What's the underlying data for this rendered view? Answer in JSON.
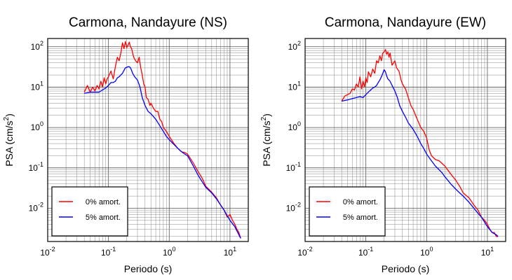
{
  "chart_data": [
    {
      "type": "line",
      "title": "Carmona, Nandayure (NS)",
      "xlabel": "Periodo (s)",
      "ylabel": "PSA (cm/s",
      "ylabel_sup": "2",
      "ylabel_close": ")",
      "xscale": "log",
      "yscale": "log",
      "xlim": [
        0.01,
        20
      ],
      "ylim": [
        0.0015,
        160
      ],
      "grid": true,
      "legend_position": "bottom-left",
      "x_ticks": [
        {
          "base": "10",
          "exp": "-2"
        },
        {
          "base": "10",
          "exp": "-1"
        },
        {
          "base": "10",
          "exp": "0"
        },
        {
          "base": "10",
          "exp": "1"
        }
      ],
      "y_ticks": [
        {
          "base": "10",
          "exp": "-2"
        },
        {
          "base": "10",
          "exp": "-1"
        },
        {
          "base": "10",
          "exp": "0"
        },
        {
          "base": "10",
          "exp": "1"
        },
        {
          "base": "10",
          "exp": "2"
        }
      ],
      "series": [
        {
          "name": "0% amort.",
          "color": "#ff0000",
          "x": [
            0.04,
            0.045,
            0.05,
            0.055,
            0.06,
            0.065,
            0.07,
            0.075,
            0.08,
            0.085,
            0.09,
            0.095,
            0.1,
            0.11,
            0.12,
            0.13,
            0.14,
            0.15,
            0.16,
            0.17,
            0.18,
            0.19,
            0.2,
            0.21,
            0.22,
            0.23,
            0.24,
            0.25,
            0.26,
            0.28,
            0.3,
            0.32,
            0.34,
            0.36,
            0.38,
            0.4,
            0.42,
            0.45,
            0.48,
            0.5,
            0.55,
            0.6,
            0.65,
            0.7,
            0.75,
            0.8,
            0.9,
            1.0,
            1.2,
            1.4,
            1.6,
            1.8,
            2.0,
            2.5,
            3.0,
            3.5,
            4.0,
            5.0,
            6.0,
            7.0,
            8.0,
            9.0,
            10.0,
            11.0,
            12.0,
            13.0,
            14.0,
            15.0
          ],
          "y": [
            7.5,
            11,
            7.5,
            10,
            8,
            11,
            9,
            14,
            10,
            17,
            12,
            16,
            18,
            25,
            16,
            32,
            55,
            45,
            70,
            125,
            90,
            135,
            95,
            110,
            130,
            100,
            90,
            70,
            55,
            45,
            40,
            55,
            30,
            20,
            12,
            10,
            5.5,
            5.0,
            3.5,
            4.0,
            3.0,
            2.5,
            2.5,
            1.6,
            1.4,
            1.0,
            0.8,
            0.6,
            0.4,
            0.3,
            0.25,
            0.24,
            0.22,
            0.13,
            0.08,
            0.055,
            0.035,
            0.025,
            0.018,
            0.012,
            0.009,
            0.006,
            0.007,
            0.005,
            0.004,
            0.003,
            0.0025,
            0.0018
          ]
        },
        {
          "name": "5% amort.",
          "color": "#0000ff",
          "x": [
            0.04,
            0.05,
            0.06,
            0.07,
            0.08,
            0.09,
            0.1,
            0.11,
            0.12,
            0.13,
            0.14,
            0.15,
            0.16,
            0.17,
            0.18,
            0.19,
            0.2,
            0.21,
            0.22,
            0.23,
            0.24,
            0.25,
            0.27,
            0.3,
            0.33,
            0.36,
            0.4,
            0.45,
            0.5,
            0.6,
            0.7,
            0.8,
            0.9,
            1.0,
            1.2,
            1.4,
            1.6,
            1.8,
            2.0,
            2.5,
            3.0,
            3.5,
            4.0,
            5.0,
            6.0,
            7.0,
            8.0,
            9.0,
            10.0,
            12.0,
            14.0,
            15.0
          ],
          "y": [
            7.0,
            7.5,
            7.5,
            7.5,
            8.5,
            9.5,
            11,
            13,
            13,
            14,
            17,
            18,
            20,
            22,
            26,
            30,
            31,
            32,
            32,
            30,
            26,
            22,
            18,
            15,
            10,
            5.5,
            3.5,
            2.5,
            2.2,
            1.6,
            1.1,
            0.8,
            0.6,
            0.5,
            0.38,
            0.3,
            0.25,
            0.22,
            0.2,
            0.11,
            0.065,
            0.045,
            0.033,
            0.024,
            0.017,
            0.012,
            0.009,
            0.0065,
            0.005,
            0.0035,
            0.0022,
            0.0018
          ]
        }
      ]
    },
    {
      "type": "line",
      "title": "Carmona, Nandayure (EW)",
      "xlabel": "Periodo (s)",
      "ylabel": "PSA (cm/s",
      "ylabel_sup": "2",
      "ylabel_close": ")",
      "xscale": "log",
      "yscale": "log",
      "xlim": [
        0.01,
        20
      ],
      "ylim": [
        0.0015,
        160
      ],
      "grid": true,
      "legend_position": "bottom-left",
      "x_ticks": [
        {
          "base": "10",
          "exp": "-2"
        },
        {
          "base": "10",
          "exp": "-1"
        },
        {
          "base": "10",
          "exp": "0"
        },
        {
          "base": "10",
          "exp": "1"
        }
      ],
      "y_ticks": [
        {
          "base": "10",
          "exp": "-2"
        },
        {
          "base": "10",
          "exp": "-1"
        },
        {
          "base": "10",
          "exp": "0"
        },
        {
          "base": "10",
          "exp": "1"
        },
        {
          "base": "10",
          "exp": "2"
        }
      ],
      "series": [
        {
          "name": "0% amort.",
          "color": "#ff0000",
          "x": [
            0.04,
            0.045,
            0.05,
            0.055,
            0.06,
            0.065,
            0.07,
            0.075,
            0.08,
            0.085,
            0.09,
            0.095,
            0.1,
            0.105,
            0.11,
            0.12,
            0.13,
            0.14,
            0.15,
            0.16,
            0.17,
            0.18,
            0.19,
            0.2,
            0.21,
            0.22,
            0.23,
            0.24,
            0.25,
            0.27,
            0.3,
            0.32,
            0.35,
            0.38,
            0.4,
            0.45,
            0.5,
            0.55,
            0.6,
            0.7,
            0.8,
            0.9,
            1.0,
            1.1,
            1.2,
            1.4,
            1.6,
            2.0,
            2.5,
            3.0,
            3.5,
            4.0,
            5.0,
            6.0,
            7.0,
            8.0,
            9.0,
            10.0,
            11.0,
            12.0,
            13.0,
            14.0,
            15.0
          ],
          "y": [
            4.5,
            6,
            6.5,
            7,
            9,
            8.5,
            12,
            10,
            18,
            9,
            14,
            10,
            17,
            13,
            24,
            18,
            28,
            22,
            45,
            40,
            60,
            45,
            70,
            75,
            85,
            65,
            75,
            55,
            70,
            35,
            45,
            30,
            25,
            15,
            12,
            9,
            5.5,
            3.5,
            2.8,
            1.6,
            1.0,
            0.8,
            0.55,
            0.28,
            0.2,
            0.16,
            0.15,
            0.11,
            0.07,
            0.05,
            0.035,
            0.024,
            0.018,
            0.012,
            0.009,
            0.006,
            0.005,
            0.004,
            0.003,
            0.0025,
            0.0025,
            0.002,
            0.002
          ]
        },
        {
          "name": "5% amort.",
          "color": "#0000ff",
          "x": [
            0.04,
            0.05,
            0.06,
            0.07,
            0.08,
            0.09,
            0.1,
            0.11,
            0.12,
            0.13,
            0.14,
            0.15,
            0.16,
            0.17,
            0.18,
            0.19,
            0.2,
            0.21,
            0.22,
            0.23,
            0.24,
            0.25,
            0.27,
            0.3,
            0.33,
            0.36,
            0.4,
            0.45,
            0.5,
            0.6,
            0.7,
            0.8,
            0.9,
            1.0,
            1.2,
            1.4,
            1.6,
            1.8,
            2.0,
            2.5,
            3.0,
            3.5,
            4.0,
            5.0,
            6.0,
            7.0,
            8.0,
            9.0,
            10.0,
            12.0,
            14.0,
            15.0
          ],
          "y": [
            4.5,
            4.8,
            5.2,
            5.5,
            5.8,
            5.5,
            6.5,
            7.5,
            8.5,
            9.5,
            10,
            11,
            13,
            15,
            18,
            22,
            27,
            24,
            19,
            16,
            15,
            14,
            11,
            8,
            5.5,
            3.5,
            2.5,
            1.8,
            1.3,
            0.9,
            0.6,
            0.4,
            0.3,
            0.22,
            0.15,
            0.11,
            0.09,
            0.075,
            0.06,
            0.04,
            0.03,
            0.024,
            0.02,
            0.014,
            0.01,
            0.0075,
            0.006,
            0.0045,
            0.0035,
            0.0025,
            0.0022,
            0.002
          ]
        }
      ]
    }
  ]
}
